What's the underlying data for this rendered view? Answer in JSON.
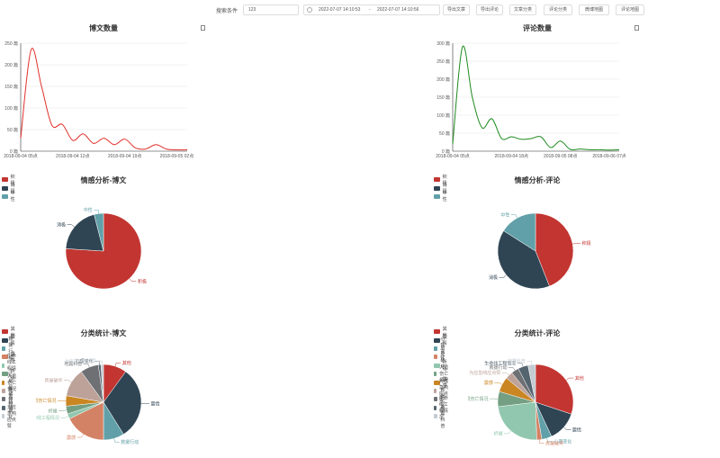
{
  "toolbar": {
    "search_label": "搜索条件",
    "keyword_value": "123",
    "start_date": "2022-07-07 14:10:53",
    "range_sep": "-",
    "end_date": "2022-07-07 14:10:56",
    "buttons": [
      "导出文章",
      "导出评论",
      "文章分类",
      "评论分类",
      "微博地图",
      "评论地图"
    ]
  },
  "colors": {
    "palette": [
      "#c23531",
      "#2f4554",
      "#61a0a8",
      "#d48265",
      "#91c7ae",
      "#749f83",
      "#ca8622",
      "#bda29a",
      "#6e7074",
      "#546570",
      "#c4ccd3"
    ],
    "post_line": "#e0302a",
    "comment_line": "#1e8a1e"
  },
  "charts": {
    "post_count": {
      "title": "博文数量",
      "y_ticks": [
        "0 篇",
        "50 篇",
        "100 篇",
        "150 篇",
        "200 篇",
        "250 篇"
      ],
      "x_ticks": [
        "2018-09-04 05点",
        "2018-09-04 12点",
        "2018-09-04 19点",
        "2018-09-05 02点"
      ]
    },
    "comment_count": {
      "title": "评论数量",
      "y_ticks": [
        "0 篇",
        "50 篇",
        "100 篇",
        "150 篇",
        "200 篇",
        "250 篇",
        "300 篇"
      ],
      "x_ticks": [
        "2018-09-04 05点",
        "2018-09-04 18点",
        "2018-09-05 08点",
        "2018-09-06 07点"
      ]
    },
    "sentiment_post": {
      "title": "情感分析-博文",
      "legend": [
        "积极",
        "消极",
        "中性"
      ]
    },
    "sentiment_comment": {
      "title": "情感分析-评论",
      "legend": [
        "积极",
        "消极",
        "中性"
      ]
    },
    "category_post": {
      "title": "分类统计-博文",
      "legend": [
        "其他",
        "震情",
        "救援行动",
        "震感",
        "生命线工程情况",
        "祈福",
        "人员伤亡情况",
        "房屋破坏",
        "地震科普",
        "心理变化",
        "为应急响应点赞"
      ]
    },
    "category_comment": {
      "title": "分类统计-评论",
      "legend": [
        "其他",
        "震情",
        "心理变化",
        "房屋破坏",
        "祈福",
        "人员伤亡情况",
        "震感",
        "为应急响应点赞",
        "救援行动",
        "生命线工程情况",
        "地震科普"
      ]
    }
  },
  "chart_data": [
    {
      "type": "line",
      "title": "博文数量",
      "x": [
        "2018-09-04 05点",
        "",
        "",
        "",
        "",
        "2018-09-04 12点",
        "",
        "",
        "",
        "",
        "2018-09-04 19点",
        "",
        "",
        "",
        "",
        "2018-09-05 02点",
        ""
      ],
      "series": [
        {
          "values": [
            30,
            235,
            150,
            60,
            62,
            25,
            40,
            18,
            30,
            15,
            28,
            8,
            5,
            15,
            5,
            3,
            3
          ]
        }
      ],
      "ylim": [
        0,
        250
      ]
    },
    {
      "type": "line",
      "title": "评论数量",
      "x": [
        "2018-09-04 05点",
        "",
        "",
        "",
        "",
        "",
        "2018-09-04 18点",
        "",
        "",
        "",
        "",
        "2018-09-05 08点",
        "",
        "",
        "",
        "",
        "2018-09-06 07点",
        ""
      ],
      "series": [
        {
          "values": [
            20,
            290,
            150,
            65,
            90,
            35,
            40,
            33,
            35,
            40,
            10,
            28,
            5,
            6,
            4,
            4,
            3,
            4
          ]
        }
      ],
      "ylim": [
        0,
        300
      ]
    },
    {
      "type": "pie",
      "title": "情感分析-博文",
      "labels": [
        "积极",
        "消极",
        "中性"
      ],
      "values": [
        76,
        20,
        4
      ]
    },
    {
      "type": "pie",
      "title": "情感分析-评论",
      "labels": [
        "积极",
        "消极",
        "中性"
      ],
      "values": [
        44,
        40,
        16
      ]
    },
    {
      "type": "pie",
      "title": "分类统计-博文",
      "labels": [
        "其他",
        "震情",
        "救援行动",
        "震感",
        "生命线工程情况",
        "祈福",
        "人员伤亡情况",
        "房屋破坏",
        "地震科普",
        "心理变化",
        "为应急响应点赞"
      ],
      "values": [
        9,
        28,
        8,
        16,
        2,
        3,
        4,
        11,
        7,
        1,
        1
      ]
    },
    {
      "type": "pie",
      "title": "分类统计-评论",
      "labels": [
        "其他",
        "震情",
        "心理变化",
        "房屋破坏",
        "祈福",
        "人员伤亡情况",
        "震感",
        "为应急响应点赞",
        "救援行动",
        "生命线工程情况",
        "地震科普"
      ],
      "values": [
        28,
        12,
        4,
        2,
        22,
        6,
        6,
        3,
        3,
        4,
        3
      ]
    }
  ]
}
